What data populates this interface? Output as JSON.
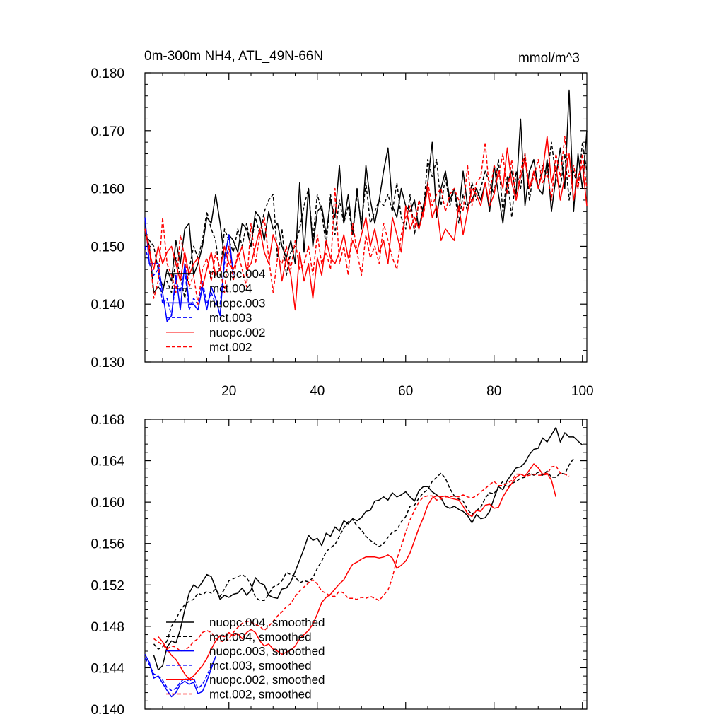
{
  "page": {
    "title": "0m-300m NH4, ATL_49N-66N",
    "units": "mmol/m^3"
  },
  "colors": {
    "black": "#000000",
    "blue": "#0000ff",
    "red": "#ff0000"
  },
  "chart_data": [
    {
      "type": "line",
      "title": "0m-300m NH4, ATL_49N-66N",
      "units_label": "mmol/m^3",
      "xlim": [
        1,
        101
      ],
      "ylim": [
        0.13,
        0.18
      ],
      "x_ticks": [
        20,
        40,
        60,
        80,
        100
      ],
      "y_ticks": [
        "0.130",
        "0.140",
        "0.150",
        "0.160",
        "0.170",
        "0.180"
      ],
      "legend_position": "lower-left",
      "series": [
        {
          "name": "nuopc.004",
          "color": "#000000",
          "dash": false,
          "values": [
            0.153,
            0.15,
            0.142,
            0.143,
            0.142,
            0.146,
            0.144,
            0.151,
            0.147,
            0.153,
            0.154,
            0.145,
            0.147,
            0.15,
            0.155,
            0.154,
            0.159,
            0.154,
            0.148,
            0.152,
            0.151,
            0.149,
            0.154,
            0.153,
            0.15,
            0.156,
            0.155,
            0.151,
            0.156,
            0.153,
            0.154,
            0.15,
            0.148,
            0.151,
            0.147,
            0.161,
            0.149,
            0.16,
            0.15,
            0.156,
            0.157,
            0.152,
            0.158,
            0.155,
            0.164,
            0.154,
            0.159,
            0.152,
            0.16,
            0.153,
            0.164,
            0.158,
            0.154,
            0.158,
            0.163,
            0.167,
            0.157,
            0.155,
            0.16,
            0.157,
            0.156,
            0.158,
            0.153,
            0.157,
            0.161,
            0.168,
            0.155,
            0.16,
            0.163,
            0.158,
            0.16,
            0.156,
            0.163,
            0.157,
            0.158,
            0.16,
            0.158,
            0.161,
            0.156,
            0.164,
            0.159,
            0.154,
            0.161,
            0.163,
            0.159,
            0.172,
            0.157,
            0.163,
            0.165,
            0.16,
            0.159,
            0.165,
            0.156,
            0.162,
            0.167,
            0.16,
            0.177,
            0.156,
            0.166,
            0.16,
            0.17
          ]
        },
        {
          "name": "mct.004",
          "color": "#000000",
          "dash": true,
          "values": [
            0.152,
            0.151,
            0.15,
            0.146,
            0.143,
            0.144,
            0.142,
            0.148,
            0.145,
            0.141,
            0.146,
            0.15,
            0.148,
            0.151,
            0.156,
            0.153,
            0.151,
            0.145,
            0.153,
            0.151,
            0.149,
            0.153,
            0.15,
            0.154,
            0.15,
            0.155,
            0.152,
            0.156,
            0.158,
            0.159,
            0.148,
            0.153,
            0.145,
            0.149,
            0.15,
            0.153,
            0.157,
            0.16,
            0.151,
            0.159,
            0.156,
            0.15,
            0.159,
            0.152,
            0.158,
            0.154,
            0.157,
            0.152,
            0.159,
            0.154,
            0.161,
            0.154,
            0.156,
            0.158,
            0.157,
            0.159,
            0.156,
            0.161,
            0.155,
            0.153,
            0.159,
            0.152,
            0.158,
            0.156,
            0.165,
            0.162,
            0.165,
            0.157,
            0.162,
            0.157,
            0.16,
            0.154,
            0.159,
            0.156,
            0.161,
            0.158,
            0.16,
            0.163,
            0.161,
            0.159,
            0.165,
            0.156,
            0.162,
            0.155,
            0.163,
            0.16,
            0.166,
            0.158,
            0.163,
            0.16,
            0.164,
            0.162,
            0.168,
            0.162,
            0.16,
            0.166,
            0.158,
            0.163,
            0.16,
            0.168,
            0.163
          ]
        },
        {
          "name": "nuopc.003",
          "color": "#0000ff",
          "dash": false,
          "values": [
            0.155,
            0.147,
            0.147,
            0.147,
            0.142,
            0.137,
            0.138,
            0.145,
            0.139,
            0.147,
            0.14,
            0.14,
            0.139,
            0.143,
            0.139,
            0.143,
            0.141,
            0.138,
            0.148,
            0.152,
            0.145
          ]
        },
        {
          "name": "mct.003",
          "color": "#0000ff",
          "dash": true,
          "values": [
            0.15,
            0.147,
            0.145,
            0.146,
            0.14,
            0.141,
            0.138,
            0.144,
            0.142,
            0.146,
            0.139,
            0.141,
            0.14,
            0.144,
            0.14,
            0.142,
            0.14,
            0.14,
            0.147,
            0.15,
            0.146
          ]
        },
        {
          "name": "nuopc.002",
          "color": "#ff0000",
          "dash": false,
          "values": [
            0.153,
            0.149,
            0.146,
            0.15,
            0.147,
            0.149,
            0.15,
            0.147,
            0.144,
            0.149,
            0.145,
            0.147,
            0.148,
            0.143,
            0.146,
            0.149,
            0.145,
            0.146,
            0.15,
            0.147,
            0.146,
            0.148,
            0.15,
            0.146,
            0.147,
            0.15,
            0.153,
            0.149,
            0.147,
            0.152,
            0.15,
            0.144,
            0.148,
            0.145,
            0.139,
            0.149,
            0.144,
            0.147,
            0.141,
            0.148,
            0.145,
            0.151,
            0.148,
            0.147,
            0.149,
            0.152,
            0.148,
            0.151,
            0.149,
            0.152,
            0.155,
            0.15,
            0.153,
            0.149,
            0.151,
            0.147,
            0.155,
            0.152,
            0.149,
            0.157,
            0.153,
            0.155,
            0.153,
            0.156,
            0.16,
            0.155,
            0.157,
            0.151,
            0.153,
            0.152,
            0.151,
            0.157,
            0.152,
            0.156,
            0.16,
            0.159,
            0.157,
            0.161,
            0.157,
            0.159,
            0.163,
            0.16,
            0.167,
            0.161,
            0.158,
            0.162,
            0.165,
            0.16,
            0.163,
            0.16,
            0.163,
            0.169,
            0.161,
            0.164,
            0.158,
            0.162,
            0.166,
            0.158,
            0.162,
            0.164,
            0.157
          ]
        },
        {
          "name": "mct.002",
          "color": "#ff0000",
          "dash": true,
          "values": [
            0.153,
            0.15,
            0.141,
            0.144,
            0.155,
            0.147,
            0.145,
            0.142,
            0.152,
            0.148,
            0.143,
            0.145,
            0.14,
            0.146,
            0.148,
            0.144,
            0.149,
            0.146,
            0.142,
            0.15,
            0.144,
            0.149,
            0.146,
            0.143,
            0.154,
            0.147,
            0.152,
            0.155,
            0.148,
            0.142,
            0.148,
            0.147,
            0.15,
            0.146,
            0.151,
            0.146,
            0.147,
            0.15,
            0.145,
            0.152,
            0.147,
            0.149,
            0.146,
            0.16,
            0.147,
            0.15,
            0.145,
            0.154,
            0.149,
            0.145,
            0.152,
            0.148,
            0.15,
            0.147,
            0.154,
            0.151,
            0.148,
            0.146,
            0.152,
            0.155,
            0.157,
            0.153,
            0.158,
            0.155,
            0.161,
            0.157,
            0.159,
            0.16,
            0.156,
            0.159,
            0.16,
            0.158,
            0.156,
            0.164,
            0.157,
            0.161,
            0.162,
            0.168,
            0.159,
            0.164,
            0.162,
            0.166,
            0.159,
            0.165,
            0.158,
            0.163,
            0.166,
            0.16,
            0.162,
            0.165,
            0.161,
            0.163,
            0.158,
            0.166,
            0.162,
            0.169,
            0.162,
            0.164,
            0.16,
            0.166,
            0.16
          ]
        }
      ]
    },
    {
      "type": "line",
      "title": "",
      "xlim": [
        1,
        101
      ],
      "ylim": [
        0.14,
        0.168
      ],
      "x_ticks": [
        20,
        40,
        60,
        80,
        100
      ],
      "y_ticks": [
        "0.140",
        "0.144",
        "0.148",
        "0.152",
        "0.156",
        "0.160",
        "0.164",
        "0.168"
      ],
      "legend_position": "lower-left",
      "series": [
        {
          "name": "nuopc.004, smoothed",
          "color": "#000000",
          "dash": false,
          "x_start": 3,
          "values": [
            0.1452,
            0.1438,
            0.1442,
            0.146,
            0.1466,
            0.1464,
            0.1477,
            0.1496,
            0.1512,
            0.152,
            0.1517,
            0.1523,
            0.153,
            0.1528,
            0.1517,
            0.1506,
            0.151,
            0.1508,
            0.1511,
            0.1512,
            0.1517,
            0.151,
            0.1515,
            0.1527,
            0.1522,
            0.152,
            0.151,
            0.1508,
            0.1507,
            0.1516,
            0.1517,
            0.1523,
            0.1533,
            0.1544,
            0.1555,
            0.1568,
            0.1563,
            0.1565,
            0.1558,
            0.157,
            0.1567,
            0.1576,
            0.1572,
            0.1582,
            0.1579,
            0.1584,
            0.1582,
            0.1585,
            0.1591,
            0.1592,
            0.1601,
            0.1602,
            0.1605,
            0.1602,
            0.1609,
            0.1605,
            0.1607,
            0.161,
            0.1605,
            0.1601,
            0.1611,
            0.1615,
            0.1615,
            0.161,
            0.1607,
            0.1604,
            0.1596,
            0.1594,
            0.1596,
            0.1593,
            0.1591,
            0.1587,
            0.158,
            0.1588,
            0.1584,
            0.1585,
            0.1591,
            0.1604,
            0.1615,
            0.1612,
            0.1621,
            0.1627,
            0.1633,
            0.1634,
            0.1638,
            0.1646,
            0.1651,
            0.1652,
            0.1662,
            0.1658,
            0.1665,
            0.1672,
            0.1658,
            0.1667,
            0.1663,
            0.1663,
            0.1659,
            0.1655
          ]
        },
        {
          "name": "mct.004, smoothed",
          "color": "#000000",
          "dash": true,
          "x_start": 3,
          "values": [
            0.1463,
            0.1458,
            0.146,
            0.1466,
            0.148,
            0.1487,
            0.1495,
            0.1501,
            0.1504,
            0.1506,
            0.1512,
            0.151,
            0.1514,
            0.1512,
            0.1516,
            0.1509,
            0.1516,
            0.1524,
            0.1526,
            0.1528,
            0.153,
            0.1527,
            0.152,
            0.1508,
            0.1505,
            0.1505,
            0.1511,
            0.1518,
            0.152,
            0.1524,
            0.1532,
            0.153,
            0.1528,
            0.1522,
            0.1524,
            0.1523,
            0.1527,
            0.1536,
            0.1543,
            0.1552,
            0.1556,
            0.1559,
            0.1567,
            0.1575,
            0.1581,
            0.1583,
            0.1577,
            0.1573,
            0.1567,
            0.1563,
            0.156,
            0.1557,
            0.156,
            0.1566,
            0.1571,
            0.1573,
            0.1581,
            0.1586,
            0.1596,
            0.1597,
            0.1604,
            0.1609,
            0.1612,
            0.162,
            0.1624,
            0.1628,
            0.1623,
            0.1613,
            0.1606,
            0.1603,
            0.1601,
            0.1593,
            0.1588,
            0.1592,
            0.1595,
            0.1604,
            0.1609,
            0.1608,
            0.1615,
            0.162,
            0.1614,
            0.1618,
            0.162,
            0.1623,
            0.1624,
            0.1628,
            0.1626,
            0.1629,
            0.1626,
            0.163,
            0.1624,
            0.1624,
            0.1628,
            0.1627,
            0.1636,
            0.1642
          ]
        },
        {
          "name": "nuopc.003, smoothed",
          "color": "#0000ff",
          "dash": false,
          "x_start": 1,
          "values": [
            0.1453,
            0.1445,
            0.143,
            0.1432,
            0.1425,
            0.1418,
            0.1412,
            0.1416,
            0.1424,
            0.1427,
            0.1424,
            0.1426,
            0.1415,
            0.1417,
            0.1427,
            0.1439,
            0.1451
          ]
        },
        {
          "name": "mct.003, smoothed",
          "color": "#0000ff",
          "dash": true,
          "x_start": 1,
          "values": [
            0.1449,
            0.1443,
            0.1434,
            0.1432,
            0.1428,
            0.1421,
            0.1418,
            0.142,
            0.1426,
            0.143,
            0.1427,
            0.143,
            0.142,
            0.1424,
            0.1432,
            0.1442,
            0.145
          ]
        },
        {
          "name": "nuopc.002, smoothed",
          "color": "#ff0000",
          "dash": false,
          "x_start": 4,
          "values": [
            0.147,
            0.1465,
            0.1458,
            0.1452,
            0.1448,
            0.1441,
            0.1434,
            0.1429,
            0.1432,
            0.1437,
            0.1442,
            0.1449,
            0.1458,
            0.1466,
            0.1471,
            0.147,
            0.1474,
            0.1471,
            0.1473,
            0.1468,
            0.1474,
            0.1477,
            0.1474,
            0.1466,
            0.1461,
            0.1463,
            0.1458,
            0.1456,
            0.1453,
            0.1455,
            0.1457,
            0.1461,
            0.1468,
            0.1472,
            0.1476,
            0.1482,
            0.1492,
            0.1503,
            0.1508,
            0.1511,
            0.1516,
            0.1521,
            0.1525,
            0.1533,
            0.154,
            0.1542,
            0.1545,
            0.1547,
            0.1547,
            0.1547,
            0.1546,
            0.1547,
            0.1549,
            0.1546,
            0.1536,
            0.1539,
            0.1543,
            0.1551,
            0.1563,
            0.1575,
            0.1585,
            0.1597,
            0.1604,
            0.1606,
            0.1605,
            0.1606,
            0.1604,
            0.1603,
            0.1602,
            0.1596,
            0.1589,
            0.1586,
            0.1592,
            0.1591,
            0.1597,
            0.1598,
            0.1594,
            0.1595,
            0.1605,
            0.1612,
            0.1618,
            0.1624,
            0.1627,
            0.1625,
            0.1631,
            0.1637,
            0.1633,
            0.1627,
            0.1628,
            0.1621,
            0.1605
          ]
        },
        {
          "name": "mct.002, smoothed",
          "color": "#ff0000",
          "dash": true,
          "x_start": 3,
          "values": [
            0.1468,
            0.1465,
            0.1462,
            0.1458,
            0.1461,
            0.146,
            0.1456,
            0.1457,
            0.146,
            0.1465,
            0.1468,
            0.1474,
            0.1476,
            0.1474,
            0.1468,
            0.1466,
            0.1465,
            0.1468,
            0.1474,
            0.1479,
            0.1483,
            0.1485,
            0.1484,
            0.1482,
            0.148,
            0.1476,
            0.148,
            0.1485,
            0.149,
            0.1494,
            0.1499,
            0.1502,
            0.1509,
            0.1514,
            0.1518,
            0.1522,
            0.1525,
            0.1521,
            0.1514,
            0.1512,
            0.1509,
            0.1509,
            0.1514,
            0.1512,
            0.1507,
            0.1507,
            0.1506,
            0.1508,
            0.1507,
            0.1509,
            0.1507,
            0.1505,
            0.151,
            0.1515,
            0.1527,
            0.1545,
            0.1557,
            0.1571,
            0.1583,
            0.1592,
            0.16,
            0.1605,
            0.1606,
            0.1606,
            0.1602,
            0.1603,
            0.1605,
            0.1605,
            0.1606,
            0.1605,
            0.1607,
            0.1605,
            0.1604,
            0.1606,
            0.161,
            0.1613,
            0.1617,
            0.162,
            0.1616,
            0.1616,
            0.1618,
            0.1621,
            0.1627,
            0.1627,
            0.1625,
            0.1626,
            0.1627,
            0.1626,
            0.1626,
            0.1627,
            0.1634,
            0.1635,
            0.1628,
            0.1627,
            0.1625
          ]
        }
      ]
    }
  ]
}
